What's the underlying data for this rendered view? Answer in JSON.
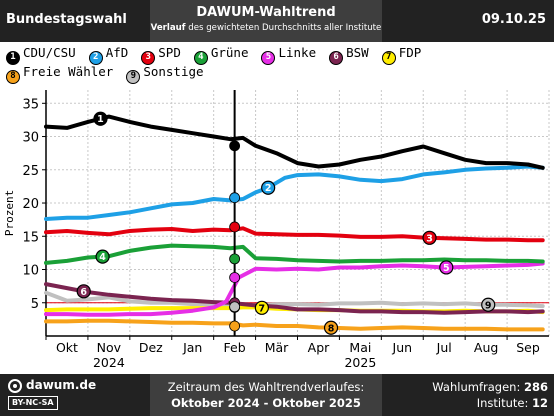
{
  "header": {
    "left": "Bundestagswahl",
    "title": "DAWUM-Wahltrend",
    "subtitle_bold": "Verlauf",
    "subtitle_rest": "des gewichteten Durchschnitts aller Institute",
    "date": "09.10.25"
  },
  "legend": [
    {
      "num": "1",
      "name": "CDU/CSU",
      "color": "#000000",
      "text_color": "#ffffff"
    },
    {
      "num": "2",
      "name": "AfD",
      "color": "#1ea0e6",
      "text_color": "#ffffff"
    },
    {
      "num": "3",
      "name": "SPD",
      "color": "#e3000f",
      "text_color": "#ffffff"
    },
    {
      "num": "4",
      "name": "Grüne",
      "color": "#1aa037",
      "text_color": "#ffffff"
    },
    {
      "num": "5",
      "name": "Linke",
      "color": "#e62ee6",
      "text_color": "#ffffff"
    },
    {
      "num": "6",
      "name": "BSW",
      "color": "#7b2450",
      "text_color": "#ffffff"
    },
    {
      "num": "7",
      "name": "FDP",
      "color": "#ffed00",
      "text_color": "#000000"
    },
    {
      "num": "8",
      "name": "Freie Wähler",
      "color": "#f7a21b",
      "text_color": "#000000"
    },
    {
      "num": "9",
      "name": "Sonstige",
      "color": "#c0c0c0",
      "text_color": "#000000"
    }
  ],
  "footer": {
    "brand": "dawum.de",
    "license": "BY-NC-SA",
    "period_label": "Zeitraum des Wahltrendverlaufes:",
    "period": "Oktober 2024 - Oktober 2025",
    "polls_label": "Wahlumfragen:",
    "polls": "286",
    "institutes_label": "Institute:",
    "institutes": "12"
  },
  "chart_data": {
    "type": "line",
    "ylabel": "Prozent",
    "ylim": [
      0,
      37
    ],
    "yticks": [
      5,
      10,
      15,
      20,
      25,
      30,
      35
    ],
    "grid": true,
    "x_months": [
      "Okt",
      "Nov",
      "Dez",
      "Jan",
      "Feb",
      "Mär",
      "Apr",
      "Mai",
      "Jun",
      "Jul",
      "Aug",
      "Sep"
    ],
    "x_years": [
      {
        "label": "2024",
        "month": "Nov"
      },
      {
        "label": "2025",
        "month": "Mai"
      }
    ],
    "election_marker": "Feb",
    "series": [
      {
        "name": "CDU/CSU",
        "label_num": "1",
        "label_at": 1.3,
        "x": [
          0,
          0.5,
          1,
          1.5,
          2,
          2.5,
          3,
          3.5,
          4,
          4.4,
          4.7,
          5,
          5.5,
          6,
          6.5,
          7,
          7.5,
          8,
          8.5,
          9,
          9.5,
          10,
          10.5,
          11,
          11.5,
          11.85
        ],
        "y": [
          31.5,
          31.3,
          32.2,
          33,
          32.2,
          31.5,
          31,
          30.5,
          30,
          29.6,
          29.8,
          28.6,
          27.5,
          26,
          25.5,
          25.8,
          26.5,
          27,
          27.8,
          28.5,
          27.5,
          26.5,
          26,
          26,
          25.8,
          25.3
        ]
      },
      {
        "name": "AfD",
        "label_num": "2",
        "label_at": 5.3,
        "x": [
          0,
          0.5,
          1,
          1.5,
          2,
          2.5,
          3,
          3.5,
          4,
          4.4,
          4.7,
          5,
          5.3,
          5.7,
          6,
          6.5,
          7,
          7.5,
          8,
          8.5,
          9,
          9.5,
          10,
          10.5,
          11,
          11.5,
          11.85
        ],
        "y": [
          17.6,
          17.8,
          17.8,
          18.2,
          18.6,
          19.2,
          19.8,
          20,
          20.6,
          20.4,
          20.6,
          21.6,
          22.3,
          23.8,
          24.2,
          24.3,
          24,
          23.5,
          23.3,
          23.6,
          24.3,
          24.6,
          25,
          25.2,
          25.3,
          25.5,
          25.3
        ]
      },
      {
        "name": "SPD",
        "label_num": "3",
        "label_at": 9.15,
        "x": [
          0,
          0.5,
          1,
          1.5,
          2,
          2.5,
          3,
          3.5,
          4,
          4.4,
          4.7,
          5,
          5.5,
          6,
          6.5,
          7,
          7.5,
          8,
          8.5,
          9,
          9.5,
          10,
          10.5,
          11,
          11.5,
          11.85
        ],
        "y": [
          15.6,
          15.8,
          15.5,
          15.3,
          15.8,
          16,
          16.1,
          15.8,
          16,
          15.9,
          16.2,
          15.4,
          15.3,
          15.2,
          15.2,
          15.1,
          14.9,
          14.9,
          15,
          14.8,
          14.7,
          14.6,
          14.5,
          14.5,
          14.4,
          14.4
        ]
      },
      {
        "name": "Grüne",
        "label_num": "4",
        "label_at": 1.35,
        "x": [
          0,
          0.5,
          1,
          1.5,
          2,
          2.5,
          3,
          3.5,
          4,
          4.4,
          4.7,
          5,
          5.5,
          6,
          6.5,
          7,
          7.5,
          8,
          8.5,
          9,
          9.5,
          10,
          10.5,
          11,
          11.5,
          11.85
        ],
        "y": [
          11,
          11.3,
          11.8,
          12,
          12.8,
          13.3,
          13.6,
          13.5,
          13.4,
          13.2,
          13.4,
          11.7,
          11.6,
          11.4,
          11.3,
          11.2,
          11.3,
          11.3,
          11.4,
          11.4,
          11.5,
          11.4,
          11.4,
          11.3,
          11.3,
          11.2
        ]
      },
      {
        "name": "Linke",
        "label_num": "5",
        "label_at": 9.55,
        "x": [
          0,
          0.5,
          1,
          1.5,
          2,
          2.5,
          3,
          3.5,
          4,
          4.3,
          4.6,
          5,
          5.5,
          6,
          6.5,
          7,
          7.5,
          8,
          8.5,
          9,
          9.5,
          10,
          10.5,
          11,
          11.5,
          11.85
        ],
        "y": [
          3.3,
          3.3,
          3.2,
          3.2,
          3.3,
          3.3,
          3.5,
          3.8,
          4.3,
          5.2,
          8.8,
          10.1,
          10,
          10.1,
          10,
          10.3,
          10.3,
          10.5,
          10.6,
          10.5,
          10.3,
          10.4,
          10.5,
          10.6,
          10.7,
          10.9
        ]
      },
      {
        "name": "BSW",
        "label_num": "6",
        "label_at": 0.9,
        "x": [
          0,
          0.5,
          1,
          1.5,
          2,
          2.5,
          3,
          3.5,
          4,
          4.4,
          4.7,
          5,
          5.5,
          6,
          6.5,
          7,
          7.5,
          8,
          8.5,
          9,
          9.5,
          10,
          10.5,
          11,
          11.5,
          11.85
        ],
        "y": [
          7.8,
          7.2,
          6.6,
          6.2,
          5.9,
          5.6,
          5.4,
          5.3,
          5.1,
          5,
          4.8,
          4.6,
          4.4,
          4,
          4,
          3.9,
          3.7,
          3.7,
          3.6,
          3.6,
          3.5,
          3.6,
          3.7,
          3.7,
          3.6,
          3.7
        ]
      },
      {
        "name": "FDP",
        "label_num": "7",
        "label_at": 5.15,
        "x": [
          0,
          0.5,
          1,
          1.5,
          2,
          2.5,
          3,
          3.5,
          4,
          4.4,
          4.7,
          5,
          5.5,
          6,
          6.5,
          7,
          7.5,
          8,
          8.5,
          9,
          9.5,
          10,
          10.5,
          11,
          11.5,
          11.85
        ],
        "y": [
          3.9,
          4,
          4,
          4,
          4.1,
          4.2,
          4.2,
          4.2,
          4.2,
          4.2,
          4.3,
          4.3,
          4.1,
          4,
          3.9,
          3.9,
          3.8,
          3.8,
          3.8,
          3.7,
          3.7,
          3.8,
          3.7,
          3.7,
          3.8,
          3.6
        ]
      },
      {
        "name": "Freie Wähler",
        "label_num": "8",
        "label_at": 6.8,
        "x": [
          0,
          0.5,
          1,
          1.5,
          2,
          2.5,
          3,
          3.5,
          4,
          4.4,
          4.7,
          5,
          5.5,
          6,
          6.5,
          7,
          7.5,
          8,
          8.5,
          9,
          9.5,
          10,
          10.5,
          11,
          11.5,
          11.85
        ],
        "y": [
          2.2,
          2.2,
          2.3,
          2.3,
          2.2,
          2.1,
          2,
          2,
          1.9,
          1.9,
          1.6,
          1.7,
          1.5,
          1.5,
          1.3,
          1.2,
          1.1,
          1.2,
          1.3,
          1.2,
          1.1,
          1.1,
          1.1,
          1,
          1,
          1
        ]
      },
      {
        "name": "Sonstige",
        "label_num": "9",
        "label_at": 10.55,
        "x": [
          0,
          0.5,
          1,
          1.5,
          2,
          2.5,
          3,
          3.5,
          4,
          4.4,
          4.7,
          5,
          5.5,
          6,
          6.5,
          7,
          7.5,
          8,
          8.5,
          9,
          9.5,
          10,
          10.5,
          11,
          11.5,
          11.85
        ],
        "y": [
          6.5,
          5.3,
          5.5,
          5.8,
          5.2,
          5,
          5,
          4.8,
          4.8,
          4.6,
          4.4,
          4.6,
          4.8,
          4.8,
          4.7,
          4.9,
          4.9,
          5,
          4.8,
          4.9,
          4.8,
          4.9,
          4.7,
          4.7,
          4.6,
          4.5
        ]
      }
    ],
    "election_values": [
      28.6,
      20.8,
      16.4,
      11.6,
      8.8,
      5.0,
      4.3,
      1.5,
      4.4
    ]
  }
}
